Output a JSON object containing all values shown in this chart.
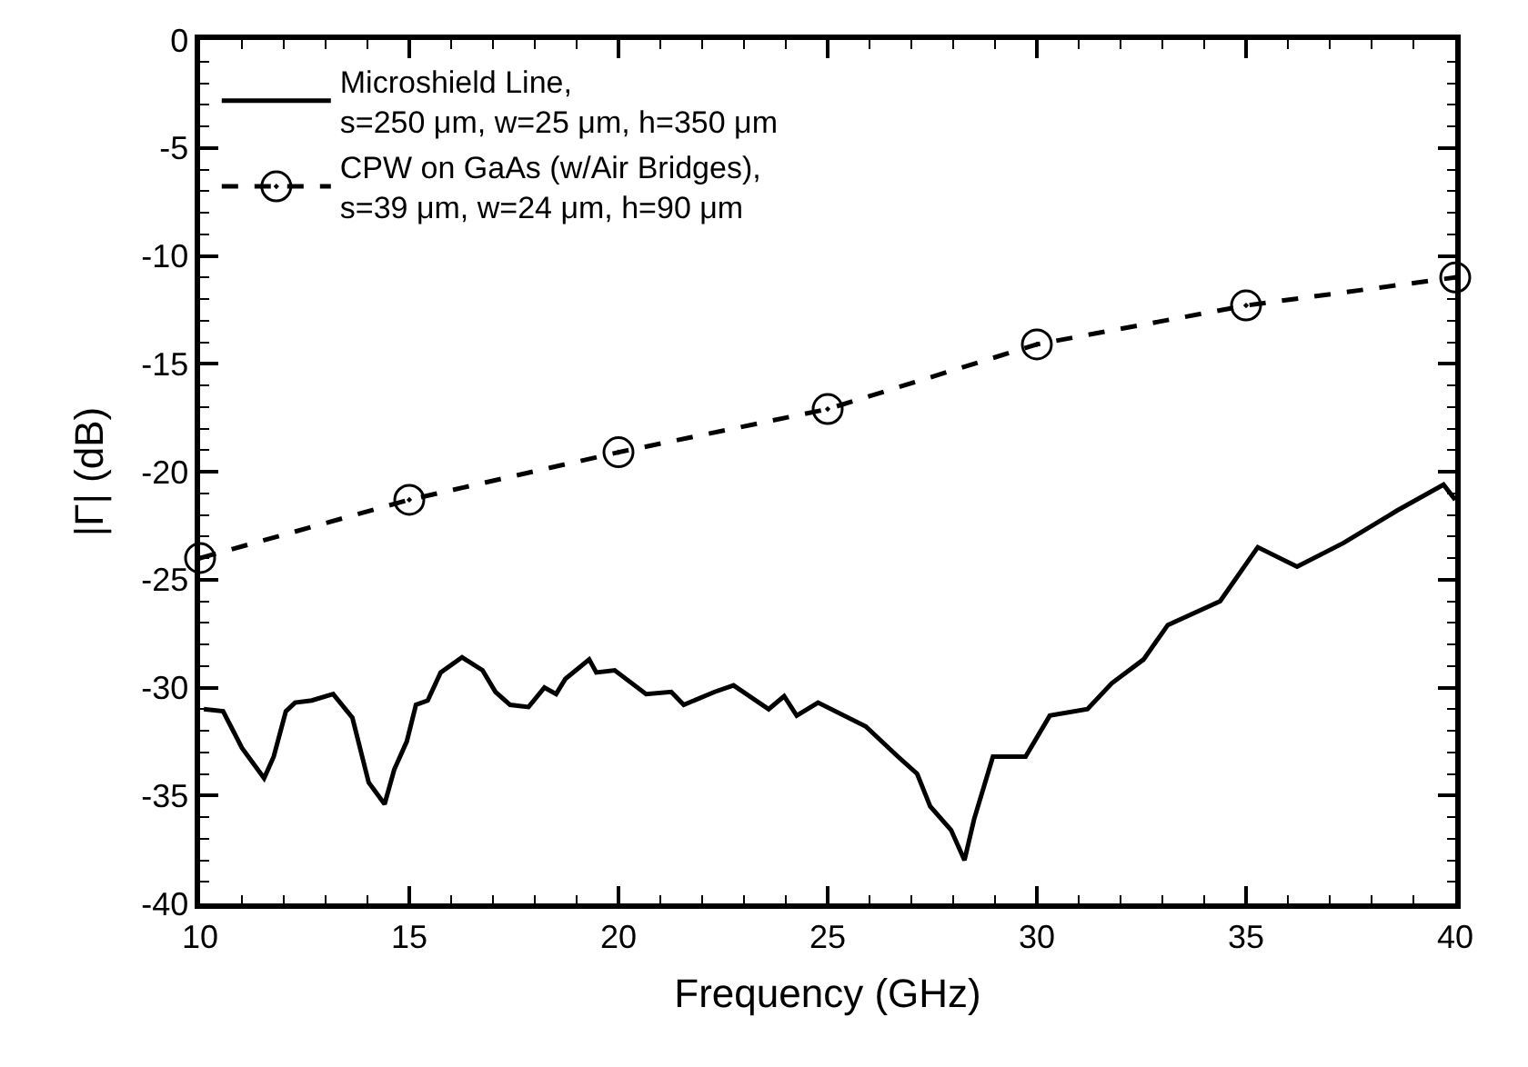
{
  "chart_data": {
    "type": "line",
    "xlabel": "Frequency (GHz)",
    "ylabel": "|Γ| (dB)",
    "xlim": [
      10,
      40
    ],
    "xticks": [
      10,
      15,
      20,
      25,
      30,
      35,
      40
    ],
    "ylim": [
      -40,
      0
    ],
    "yticks": [
      -40,
      -35,
      -30,
      -25,
      -20,
      -15,
      -10,
      -5,
      0
    ],
    "legend": "top left",
    "series": [
      {
        "name": "Microshield Line,\ns=250 μm, w=25 μm, h=350 μm",
        "color": "#000000",
        "line_style": "solid",
        "marker": "none",
        "x": [
          10.09,
          10.55,
          11.0,
          11.53,
          11.76,
          12.05,
          12.27,
          12.67,
          13.18,
          13.64,
          14.03,
          14.41,
          14.64,
          14.94,
          15.16,
          15.44,
          15.75,
          16.26,
          16.75,
          17.06,
          17.41,
          17.85,
          18.23,
          18.51,
          18.73,
          19.3,
          19.47,
          19.91,
          20.66,
          21.26,
          21.56,
          22.3,
          22.75,
          23.59,
          23.96,
          24.26,
          24.77,
          25.91,
          26.68,
          27.14,
          27.45,
          27.95,
          28.27,
          28.5,
          28.95,
          29.73,
          30.31,
          31.21,
          31.79,
          32.55,
          33.13,
          34.38,
          35.28,
          36.22,
          37.33,
          38.61,
          39.72,
          40
        ],
        "values": [
          -31.0,
          -31.1,
          -32.8,
          -34.2,
          -33.2,
          -31.1,
          -30.7,
          -30.6,
          -30.3,
          -31.4,
          -34.4,
          -35.4,
          -33.8,
          -32.5,
          -30.8,
          -30.6,
          -29.3,
          -28.6,
          -29.2,
          -30.2,
          -30.8,
          -30.9,
          -30.0,
          -30.3,
          -29.6,
          -28.7,
          -29.3,
          -29.2,
          -30.3,
          -30.2,
          -30.8,
          -30.2,
          -29.9,
          -31.0,
          -30.4,
          -31.3,
          -30.7,
          -31.8,
          -33.2,
          -34.0,
          -35.5,
          -36.6,
          -38.0,
          -36.1,
          -33.2,
          -33.2,
          -31.3,
          -31.0,
          -29.8,
          -28.7,
          -27.1,
          -26.0,
          -23.5,
          -24.4,
          -23.3,
          -21.8,
          -20.6,
          -21.3
        ]
      },
      {
        "name": "CPW on GaAs (w/Air Bridges),\ns=39 μm, w=24 μm, h=90 μm",
        "color": "#000000",
        "line_style": "dashed",
        "marker": "circle",
        "x": [
          10,
          15,
          20,
          25,
          30,
          35,
          40
        ],
        "values": [
          -24.0,
          -21.3,
          -19.1,
          -17.1,
          -14.1,
          -12.3,
          -11.0
        ]
      }
    ]
  }
}
